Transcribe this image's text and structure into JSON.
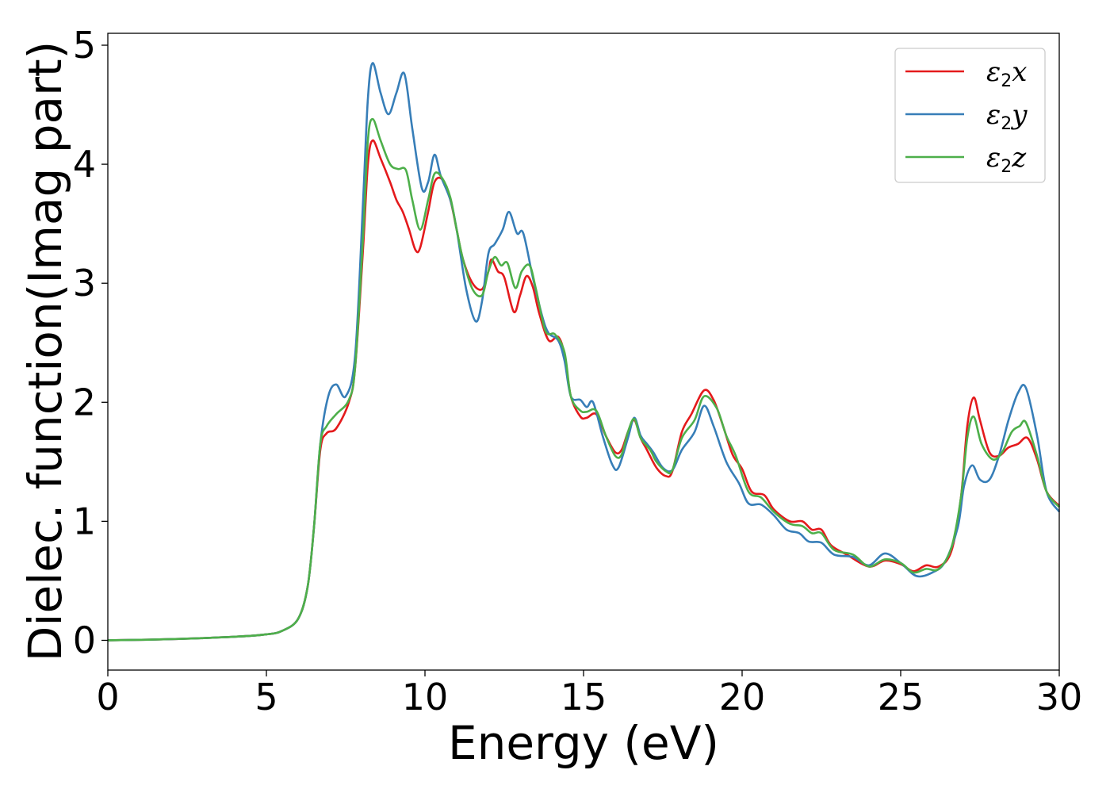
{
  "chart_data": {
    "type": "line",
    "title": "",
    "xlabel": "Energy (eV)",
    "ylabel": "Dielec. function(Imag part)",
    "xlim": [
      0,
      30
    ],
    "ylim": [
      -0.25,
      5.1
    ],
    "xticks": [
      0,
      5,
      10,
      15,
      20,
      25,
      30
    ],
    "yticks": [
      0,
      1,
      2,
      3,
      4,
      5
    ],
    "grid": false,
    "legend_position": "top-right",
    "series": [
      {
        "name": "ε2x",
        "legend_base": "ε",
        "legend_sub": "2",
        "legend_var": "x",
        "color": "#e41a1c",
        "points": [
          [
            0,
            0.0
          ],
          [
            2,
            0.01
          ],
          [
            4,
            0.03
          ],
          [
            5,
            0.05
          ],
          [
            5.5,
            0.08
          ],
          [
            6,
            0.18
          ],
          [
            6.3,
            0.45
          ],
          [
            6.5,
            0.95
          ],
          [
            6.7,
            1.6
          ],
          [
            6.9,
            1.74
          ],
          [
            7.2,
            1.78
          ],
          [
            7.6,
            2.0
          ],
          [
            7.8,
            2.3
          ],
          [
            8.05,
            3.3
          ],
          [
            8.2,
            4.0
          ],
          [
            8.35,
            4.2
          ],
          [
            8.6,
            4.05
          ],
          [
            8.9,
            3.85
          ],
          [
            9.1,
            3.7
          ],
          [
            9.3,
            3.6
          ],
          [
            9.5,
            3.45
          ],
          [
            9.7,
            3.28
          ],
          [
            9.85,
            3.3
          ],
          [
            10.1,
            3.6
          ],
          [
            10.3,
            3.85
          ],
          [
            10.55,
            3.87
          ],
          [
            10.8,
            3.7
          ],
          [
            11.0,
            3.45
          ],
          [
            11.2,
            3.2
          ],
          [
            11.5,
            3.0
          ],
          [
            11.8,
            2.95
          ],
          [
            12.0,
            3.1
          ],
          [
            12.1,
            3.2
          ],
          [
            12.3,
            3.1
          ],
          [
            12.5,
            3.05
          ],
          [
            12.8,
            2.76
          ],
          [
            13.0,
            2.9
          ],
          [
            13.2,
            3.06
          ],
          [
            13.4,
            2.97
          ],
          [
            13.6,
            2.75
          ],
          [
            13.9,
            2.52
          ],
          [
            14.2,
            2.55
          ],
          [
            14.4,
            2.4
          ],
          [
            14.6,
            2.05
          ],
          [
            14.9,
            1.88
          ],
          [
            15.1,
            1.87
          ],
          [
            15.4,
            1.9
          ],
          [
            15.7,
            1.72
          ],
          [
            16.0,
            1.58
          ],
          [
            16.2,
            1.6
          ],
          [
            16.4,
            1.75
          ],
          [
            16.6,
            1.85
          ],
          [
            16.8,
            1.7
          ],
          [
            17.0,
            1.6
          ],
          [
            17.3,
            1.45
          ],
          [
            17.6,
            1.38
          ],
          [
            17.8,
            1.42
          ],
          [
            18.1,
            1.75
          ],
          [
            18.4,
            1.9
          ],
          [
            18.8,
            2.1
          ],
          [
            19.1,
            2.02
          ],
          [
            19.4,
            1.8
          ],
          [
            19.7,
            1.56
          ],
          [
            20.0,
            1.44
          ],
          [
            20.3,
            1.25
          ],
          [
            20.7,
            1.22
          ],
          [
            21.0,
            1.1
          ],
          [
            21.5,
            1.0
          ],
          [
            21.9,
            1.0
          ],
          [
            22.2,
            0.93
          ],
          [
            22.5,
            0.93
          ],
          [
            22.8,
            0.8
          ],
          [
            23.3,
            0.72
          ],
          [
            24.0,
            0.62
          ],
          [
            24.5,
            0.67
          ],
          [
            25.0,
            0.64
          ],
          [
            25.4,
            0.58
          ],
          [
            25.8,
            0.63
          ],
          [
            26.2,
            0.62
          ],
          [
            26.6,
            0.75
          ],
          [
            26.9,
            1.2
          ],
          [
            27.1,
            1.8
          ],
          [
            27.3,
            2.04
          ],
          [
            27.5,
            1.85
          ],
          [
            27.8,
            1.58
          ],
          [
            28.1,
            1.55
          ],
          [
            28.4,
            1.62
          ],
          [
            28.7,
            1.65
          ],
          [
            29.0,
            1.7
          ],
          [
            29.3,
            1.52
          ],
          [
            29.6,
            1.25
          ],
          [
            30,
            1.13
          ]
        ]
      },
      {
        "name": "ε2y",
        "legend_base": "ε",
        "legend_sub": "2",
        "legend_var": "y",
        "color": "#377eb8",
        "points": [
          [
            0,
            0.0
          ],
          [
            2,
            0.01
          ],
          [
            4,
            0.03
          ],
          [
            5,
            0.05
          ],
          [
            5.5,
            0.08
          ],
          [
            6,
            0.18
          ],
          [
            6.3,
            0.45
          ],
          [
            6.5,
            0.95
          ],
          [
            6.7,
            1.65
          ],
          [
            6.95,
            2.05
          ],
          [
            7.2,
            2.15
          ],
          [
            7.5,
            2.05
          ],
          [
            7.8,
            2.4
          ],
          [
            8.05,
            3.7
          ],
          [
            8.2,
            4.55
          ],
          [
            8.35,
            4.85
          ],
          [
            8.6,
            4.6
          ],
          [
            8.85,
            4.42
          ],
          [
            9.1,
            4.6
          ],
          [
            9.35,
            4.76
          ],
          [
            9.6,
            4.3
          ],
          [
            9.9,
            3.8
          ],
          [
            10.1,
            3.85
          ],
          [
            10.3,
            4.08
          ],
          [
            10.5,
            3.9
          ],
          [
            10.8,
            3.7
          ],
          [
            11.0,
            3.45
          ],
          [
            11.3,
            2.95
          ],
          [
            11.6,
            2.68
          ],
          [
            11.8,
            2.85
          ],
          [
            12.0,
            3.25
          ],
          [
            12.2,
            3.33
          ],
          [
            12.45,
            3.45
          ],
          [
            12.65,
            3.6
          ],
          [
            12.9,
            3.42
          ],
          [
            13.1,
            3.42
          ],
          [
            13.4,
            3.05
          ],
          [
            13.7,
            2.72
          ],
          [
            13.9,
            2.58
          ],
          [
            14.2,
            2.52
          ],
          [
            14.4,
            2.35
          ],
          [
            14.6,
            2.05
          ],
          [
            14.9,
            2.02
          ],
          [
            15.1,
            1.96
          ],
          [
            15.3,
            2.0
          ],
          [
            15.6,
            1.72
          ],
          [
            15.9,
            1.48
          ],
          [
            16.1,
            1.45
          ],
          [
            16.4,
            1.7
          ],
          [
            16.6,
            1.87
          ],
          [
            16.8,
            1.72
          ],
          [
            17.0,
            1.65
          ],
          [
            17.2,
            1.58
          ],
          [
            17.5,
            1.45
          ],
          [
            17.8,
            1.43
          ],
          [
            18.1,
            1.6
          ],
          [
            18.5,
            1.75
          ],
          [
            18.8,
            1.97
          ],
          [
            19.1,
            1.8
          ],
          [
            19.5,
            1.5
          ],
          [
            19.9,
            1.32
          ],
          [
            20.2,
            1.15
          ],
          [
            20.6,
            1.14
          ],
          [
            21.0,
            1.05
          ],
          [
            21.4,
            0.93
          ],
          [
            21.8,
            0.9
          ],
          [
            22.1,
            0.83
          ],
          [
            22.5,
            0.82
          ],
          [
            22.9,
            0.72
          ],
          [
            23.5,
            0.7
          ],
          [
            24.0,
            0.63
          ],
          [
            24.5,
            0.73
          ],
          [
            25.0,
            0.65
          ],
          [
            25.5,
            0.54
          ],
          [
            26.0,
            0.57
          ],
          [
            26.4,
            0.66
          ],
          [
            26.8,
            0.95
          ],
          [
            27.0,
            1.3
          ],
          [
            27.25,
            1.47
          ],
          [
            27.5,
            1.35
          ],
          [
            27.8,
            1.35
          ],
          [
            28.1,
            1.55
          ],
          [
            28.4,
            1.85
          ],
          [
            28.7,
            2.08
          ],
          [
            28.95,
            2.12
          ],
          [
            29.3,
            1.72
          ],
          [
            29.6,
            1.25
          ],
          [
            30,
            1.08
          ]
        ]
      },
      {
        "name": "ε2z",
        "legend_base": "ε",
        "legend_sub": "2",
        "legend_var": "z",
        "color": "#4daf4a",
        "points": [
          [
            0,
            0.0
          ],
          [
            2,
            0.01
          ],
          [
            4,
            0.03
          ],
          [
            5,
            0.05
          ],
          [
            5.5,
            0.08
          ],
          [
            6,
            0.18
          ],
          [
            6.3,
            0.45
          ],
          [
            6.5,
            0.95
          ],
          [
            6.7,
            1.65
          ],
          [
            6.9,
            1.8
          ],
          [
            7.2,
            1.9
          ],
          [
            7.6,
            2.02
          ],
          [
            7.8,
            2.3
          ],
          [
            8.05,
            3.4
          ],
          [
            8.2,
            4.2
          ],
          [
            8.35,
            4.38
          ],
          [
            8.6,
            4.2
          ],
          [
            8.9,
            4.0
          ],
          [
            9.15,
            3.96
          ],
          [
            9.4,
            3.95
          ],
          [
            9.6,
            3.7
          ],
          [
            9.85,
            3.45
          ],
          [
            10.1,
            3.7
          ],
          [
            10.3,
            3.92
          ],
          [
            10.55,
            3.88
          ],
          [
            10.8,
            3.72
          ],
          [
            11.0,
            3.45
          ],
          [
            11.2,
            3.2
          ],
          [
            11.5,
            2.95
          ],
          [
            11.8,
            2.9
          ],
          [
            12.0,
            3.1
          ],
          [
            12.2,
            3.22
          ],
          [
            12.4,
            3.15
          ],
          [
            12.6,
            3.17
          ],
          [
            12.85,
            2.96
          ],
          [
            13.05,
            3.1
          ],
          [
            13.3,
            3.15
          ],
          [
            13.5,
            2.95
          ],
          [
            13.8,
            2.6
          ],
          [
            14.1,
            2.57
          ],
          [
            14.4,
            2.42
          ],
          [
            14.6,
            2.05
          ],
          [
            14.9,
            1.93
          ],
          [
            15.1,
            1.92
          ],
          [
            15.4,
            1.93
          ],
          [
            15.7,
            1.72
          ],
          [
            16.0,
            1.55
          ],
          [
            16.2,
            1.56
          ],
          [
            16.4,
            1.75
          ],
          [
            16.6,
            1.86
          ],
          [
            16.8,
            1.7
          ],
          [
            17.1,
            1.6
          ],
          [
            17.3,
            1.5
          ],
          [
            17.6,
            1.42
          ],
          [
            17.8,
            1.43
          ],
          [
            18.1,
            1.7
          ],
          [
            18.5,
            1.85
          ],
          [
            18.8,
            2.05
          ],
          [
            19.2,
            1.95
          ],
          [
            19.5,
            1.72
          ],
          [
            19.8,
            1.55
          ],
          [
            20.2,
            1.25
          ],
          [
            20.6,
            1.2
          ],
          [
            21.0,
            1.08
          ],
          [
            21.5,
            0.98
          ],
          [
            21.9,
            0.96
          ],
          [
            22.2,
            0.9
          ],
          [
            22.5,
            0.9
          ],
          [
            22.9,
            0.76
          ],
          [
            23.5,
            0.72
          ],
          [
            24.0,
            0.62
          ],
          [
            24.5,
            0.68
          ],
          [
            25.0,
            0.65
          ],
          [
            25.4,
            0.57
          ],
          [
            25.8,
            0.6
          ],
          [
            26.2,
            0.6
          ],
          [
            26.6,
            0.78
          ],
          [
            26.9,
            1.2
          ],
          [
            27.1,
            1.7
          ],
          [
            27.3,
            1.88
          ],
          [
            27.55,
            1.65
          ],
          [
            27.9,
            1.52
          ],
          [
            28.2,
            1.58
          ],
          [
            28.5,
            1.75
          ],
          [
            28.75,
            1.8
          ],
          [
            28.95,
            1.83
          ],
          [
            29.3,
            1.55
          ],
          [
            29.6,
            1.25
          ],
          [
            30,
            1.12
          ]
        ]
      }
    ]
  }
}
